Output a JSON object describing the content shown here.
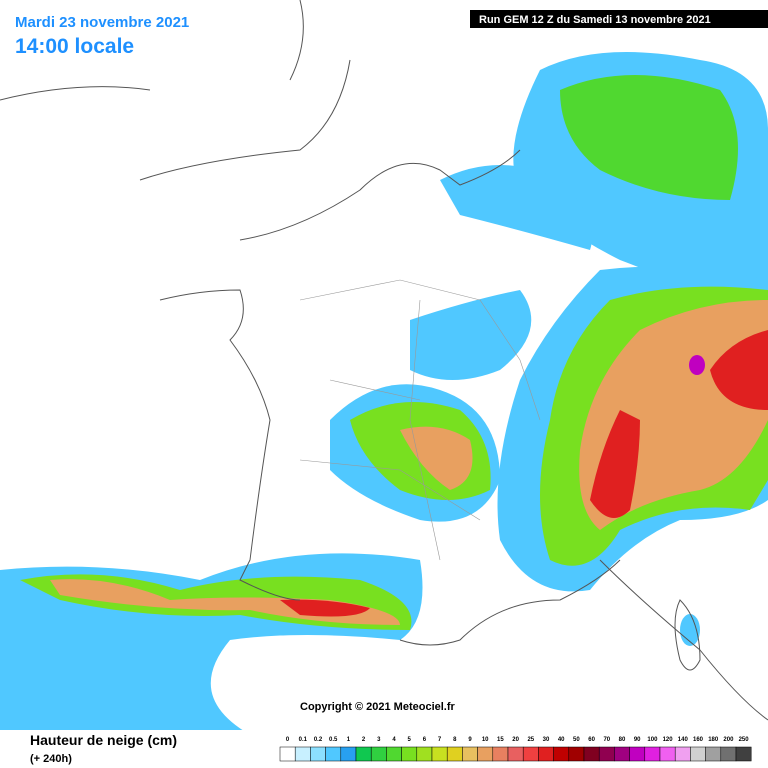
{
  "header": {
    "date": "Mardi 23 novembre 2021",
    "time": "14:00 locale",
    "run": "Run GEM 12 Z du Samedi 13 novembre 2021"
  },
  "copyright": "Copyright © 2021 Meteociel.fr",
  "legend": {
    "title": "Hauteur de neige (cm)",
    "subtitle": "(+ 240h)",
    "labels": [
      "0",
      "0.1",
      "0.2",
      "0.5",
      "1",
      "2",
      "3",
      "4",
      "5",
      "6",
      "7",
      "8",
      "9",
      "10",
      "15",
      "20",
      "25",
      "30",
      "40",
      "50",
      "60",
      "70",
      "80",
      "90",
      "100",
      "120",
      "140",
      "160",
      "180",
      "200",
      "250"
    ],
    "colors": [
      "#ffffff",
      "#c8f0ff",
      "#8ce0ff",
      "#50c8ff",
      "#28a0f0",
      "#10c850",
      "#30d040",
      "#50d830",
      "#78e020",
      "#a0e020",
      "#c8e020",
      "#e0d020",
      "#e8c060",
      "#e8a060",
      "#e88060",
      "#e86060",
      "#f04040",
      "#e02020",
      "#c00000",
      "#a00000",
      "#800020",
      "#900050",
      "#a00080",
      "#c000c0",
      "#e020e0",
      "#f060f0",
      "#f0a0f0",
      "#d0d0d0",
      "#a0a0a0",
      "#707070",
      "#404040"
    ]
  }
}
